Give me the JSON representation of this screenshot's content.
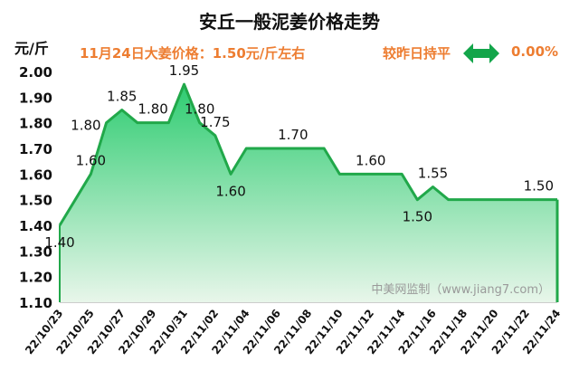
{
  "header": {
    "title": "安丘一般泥姜价格走势",
    "unit": "元/斤",
    "price_note": "11月24日大姜价格：1.50元/斤左右",
    "compare_label": "较昨日持平",
    "change_pct": "0.00%",
    "arrow_icon": "double-arrow-icon"
  },
  "watermark": "中美网监制（www.jiang7.com）",
  "colors": {
    "accent_orange": "#ed7d31",
    "line_green": "#21a84a",
    "fill_top": "#2ecc71",
    "fill_bottom": "#e8f6ea",
    "arrow_green": "#13a54a"
  },
  "chart_data": {
    "type": "area",
    "title": "安丘一般泥姜价格走势",
    "ylabel": "元/斤",
    "xlabel": "",
    "ylim": [
      1.1,
      2.0
    ],
    "yticks": [
      "1.10",
      "1.20",
      "1.30",
      "1.40",
      "1.50",
      "1.60",
      "1.70",
      "1.80",
      "1.90",
      "2.00"
    ],
    "x": [
      "22/10/23",
      "22/10/24",
      "22/10/25",
      "22/10/26",
      "22/10/27",
      "22/10/28",
      "22/10/29",
      "22/10/30",
      "22/10/31",
      "22/11/01",
      "22/11/02",
      "22/11/03",
      "22/11/04",
      "22/11/05",
      "22/11/06",
      "22/11/07",
      "22/11/08",
      "22/11/09",
      "22/11/10",
      "22/11/11",
      "22/11/12",
      "22/11/13",
      "22/11/14",
      "22/11/15",
      "22/11/16",
      "22/11/17",
      "22/11/18",
      "22/11/19",
      "22/11/20",
      "22/11/21",
      "22/11/22",
      "22/11/23",
      "22/11/24"
    ],
    "xtick_labels": [
      "22/10/23",
      "22/10/25",
      "22/10/27",
      "22/10/29",
      "22/10/31",
      "22/11/02",
      "22/11/04",
      "22/11/06",
      "22/11/08",
      "22/11/10",
      "22/11/12",
      "22/11/14",
      "22/11/16",
      "22/11/18",
      "22/11/20",
      "22/11/22",
      "22/11/24"
    ],
    "series": [
      {
        "values": [
          1.4,
          1.5,
          1.6,
          1.8,
          1.85,
          1.8,
          1.8,
          1.8,
          1.95,
          1.8,
          1.75,
          1.6,
          1.7,
          1.7,
          1.7,
          1.7,
          1.7,
          1.7,
          1.6,
          1.6,
          1.6,
          1.6,
          1.6,
          1.5,
          1.55,
          1.5,
          1.5,
          1.5,
          1.5,
          1.5,
          1.5,
          1.5,
          1.5
        ]
      }
    ],
    "data_labels": [
      {
        "index": 0,
        "text": "1.40",
        "pos": "below"
      },
      {
        "index": 2,
        "text": "1.60",
        "pos": "above"
      },
      {
        "index": 3,
        "text": "1.80",
        "pos": "left"
      },
      {
        "index": 4,
        "text": "1.85",
        "pos": "above"
      },
      {
        "index": 6,
        "text": "1.80",
        "pos": "above"
      },
      {
        "index": 8,
        "text": "1.95",
        "pos": "above"
      },
      {
        "index": 9,
        "text": "1.80",
        "pos": "above"
      },
      {
        "index": 10,
        "text": "1.75",
        "pos": "above"
      },
      {
        "index": 11,
        "text": "1.60",
        "pos": "below"
      },
      {
        "index": 15,
        "text": "1.70",
        "pos": "above"
      },
      {
        "index": 20,
        "text": "1.60",
        "pos": "above"
      },
      {
        "index": 23,
        "text": "1.50",
        "pos": "below"
      },
      {
        "index": 24,
        "text": "1.55",
        "pos": "above"
      },
      {
        "index": 32,
        "text": "1.50",
        "pos": "above-left"
      }
    ],
    "grid": false,
    "legend": "none"
  }
}
